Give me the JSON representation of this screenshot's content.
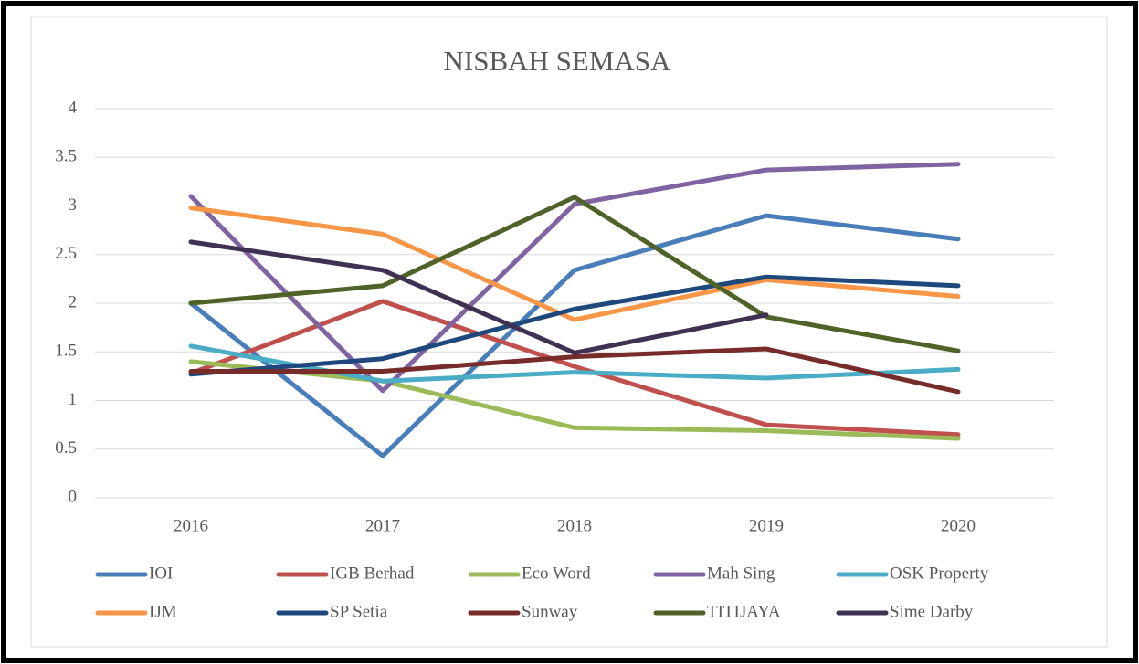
{
  "chart_data": {
    "type": "line",
    "title": "NISBAH SEMASA",
    "categories": [
      "2016",
      "2017",
      "2018",
      "2019",
      "2020"
    ],
    "ylim": [
      0,
      4
    ],
    "yticks": [
      0,
      0.5,
      1,
      1.5,
      2,
      2.5,
      3,
      3.5,
      4
    ],
    "grid": true,
    "legend": "bottom",
    "series": [
      {
        "name": "IOI",
        "color": "#4a7ebb",
        "values": [
          2.0,
          0.43,
          2.34,
          2.9,
          2.66
        ]
      },
      {
        "name": "IGB Berhad",
        "color": "#c0504d",
        "values": [
          1.28,
          2.02,
          1.35,
          0.75,
          0.65
        ]
      },
      {
        "name": "Eco Word",
        "color": "#9bbb59",
        "values": [
          1.4,
          1.2,
          0.72,
          0.69,
          0.61
        ]
      },
      {
        "name": "Mah Sing",
        "color": "#8064a2",
        "values": [
          3.1,
          1.1,
          3.02,
          3.37,
          3.43
        ]
      },
      {
        "name": "OSK Property",
        "color": "#4bacc6",
        "values": [
          1.56,
          1.2,
          1.29,
          1.23,
          1.32
        ]
      },
      {
        "name": "IJM",
        "color": "#f79646",
        "values": [
          2.98,
          2.71,
          1.83,
          2.24,
          2.07
        ]
      },
      {
        "name": "SP Setia",
        "color": "#1f497d",
        "values": [
          1.27,
          1.43,
          1.94,
          2.27,
          2.18
        ]
      },
      {
        "name": "Sunway",
        "color": "#772c2a",
        "values": [
          1.3,
          1.3,
          1.45,
          1.53,
          1.09
        ]
      },
      {
        "name": "TITIJAYA",
        "color": "#4f6228",
        "values": [
          2.0,
          2.18,
          3.09,
          1.86,
          1.51
        ]
      },
      {
        "name": "Sime Darby",
        "color": "#3f3151",
        "values": [
          2.63,
          2.34,
          1.49,
          1.88,
          null
        ]
      }
    ]
  }
}
